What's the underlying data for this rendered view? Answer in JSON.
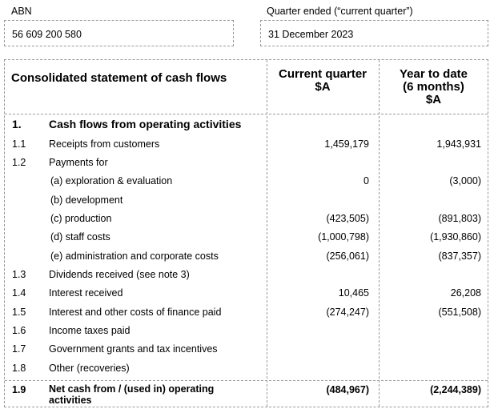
{
  "header": {
    "abn_label": "ABN",
    "abn_value": "56 609 200 580",
    "quarter_label": "Quarter ended (“current quarter”)",
    "quarter_value": "31 December 2023"
  },
  "table": {
    "title": "Consolidated statement of cash flows",
    "col_current_line1": "Current quarter",
    "col_current_line2": "$A",
    "col_ytd_line1": "Year to date",
    "col_ytd_line2": "(6 months)",
    "col_ytd_line3": "$A",
    "section_num": "1.",
    "section_label": "Cash flows from operating activities",
    "rows": [
      {
        "num": "1.1",
        "label": "Receipts from customers",
        "current": "1,459,179",
        "ytd": "1,943,931"
      },
      {
        "num": "1.2",
        "label": "Payments for",
        "current": "",
        "ytd": ""
      },
      {
        "num": "",
        "label": "(a)  exploration & evaluation",
        "current": "0",
        "ytd": "(3,000)"
      },
      {
        "num": "",
        "label": "(b)  development",
        "current": "",
        "ytd": ""
      },
      {
        "num": "",
        "label": "(c)  production",
        "current": "(423,505)",
        "ytd": "(891,803)"
      },
      {
        "num": "",
        "label": "(d)  staff costs",
        "current": "(1,000,798)",
        "ytd": "(1,930,860)"
      },
      {
        "num": "",
        "label": "(e)  administration and corporate costs",
        "current": "(256,061)",
        "ytd": "(837,357)"
      },
      {
        "num": "1.3",
        "label": "Dividends received (see note 3)",
        "current": "",
        "ytd": ""
      },
      {
        "num": "1.4",
        "label": "Interest received",
        "current": "10,465",
        "ytd": "26,208"
      },
      {
        "num": "1.5",
        "label": "Interest and other costs of finance paid",
        "current": "(274,247)",
        "ytd": "(551,508)"
      },
      {
        "num": "1.6",
        "label": "Income taxes paid",
        "current": "",
        "ytd": ""
      },
      {
        "num": "1.7",
        "label": "Government grants and tax incentives",
        "current": "",
        "ytd": ""
      },
      {
        "num": "1.8",
        "label": "Other (recoveries)",
        "current": "",
        "ytd": ""
      }
    ],
    "total": {
      "num": "1.9",
      "label_line1": "Net cash from / (used in) operating",
      "label_line2": "activities",
      "current": "(484,967)",
      "ytd": "(2,244,389)"
    }
  }
}
